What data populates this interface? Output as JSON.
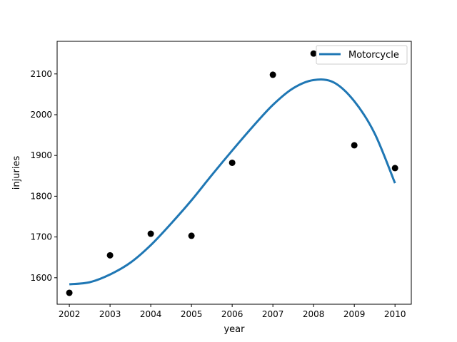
{
  "chart_data": {
    "type": "line",
    "title": "",
    "xlabel": "year",
    "ylabel": "injuries",
    "xlim": [
      2001.7,
      2010.4
    ],
    "ylim": [
      1535,
      2180
    ],
    "xticks": [
      2002,
      2003,
      2004,
      2005,
      2006,
      2007,
      2008,
      2009,
      2010
    ],
    "yticks": [
      1600,
      1700,
      1800,
      1900,
      2000,
      2100
    ],
    "grid": false,
    "legend_position": "top-right",
    "scatter": {
      "color": "#000000",
      "x": [
        2002,
        2003,
        2004,
        2005,
        2006,
        2007,
        2008,
        2009,
        2010
      ],
      "y": [
        1563,
        1655,
        1708,
        1703,
        1882,
        2098,
        2150,
        1925,
        1869
      ]
    },
    "series": [
      {
        "name": "Motorcycle",
        "color": "#1f77b4",
        "x": [
          2002,
          2002.5,
          2003,
          2003.5,
          2004,
          2004.5,
          2005,
          2005.5,
          2006,
          2006.5,
          2007,
          2007.5,
          2008,
          2008.5,
          2009,
          2009.5,
          2010
        ],
        "y": [
          1584,
          1589,
          1608,
          1637,
          1680,
          1733,
          1790,
          1852,
          1912,
          1970,
          2024,
          2065,
          2085,
          2079,
          2033,
          1954,
          1832
        ]
      }
    ]
  }
}
